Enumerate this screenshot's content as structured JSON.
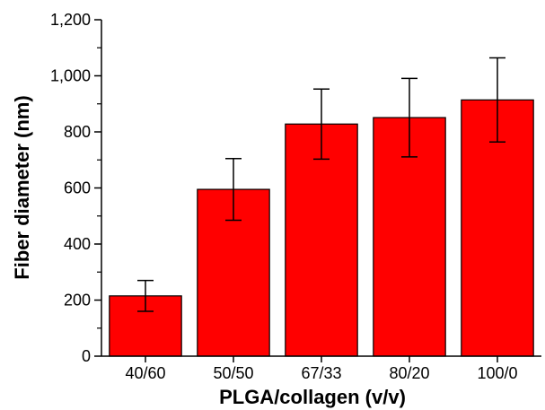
{
  "chart_data": {
    "type": "bar",
    "title": "",
    "xlabel": "PLGA/collagen (v/v)",
    "ylabel": "Fiber diameter (nm)",
    "categories": [
      "40/60",
      "50/50",
      "67/33",
      "80/20",
      "100/0"
    ],
    "series": [
      {
        "values": [
          215,
          595,
          828,
          851,
          914
        ],
        "error": [
          55,
          110,
          125,
          140,
          150
        ]
      }
    ],
    "ylim": [
      0,
      1200
    ],
    "yticks": [
      0,
      200,
      400,
      600,
      800,
      1000,
      1200
    ],
    "ytick_labels": [
      "0",
      "200",
      "400",
      "600",
      "800",
      "1,000",
      "1,200"
    ],
    "grid": false,
    "legend": "none",
    "bar_color": "#ff0000",
    "edge_color": "#000000"
  }
}
